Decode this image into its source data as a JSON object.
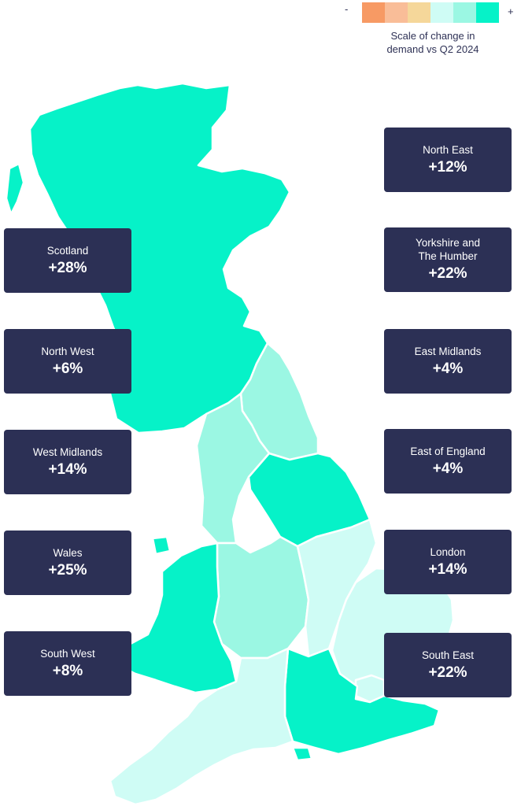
{
  "legend": {
    "minus": "-",
    "plus": "+",
    "caption": "Scale of change in\ndemand vs Q2 2024",
    "scale_colors": [
      "#f79a64",
      "#f9bd98",
      "#f5d79a",
      "#cffcf5",
      "#9bf7e3",
      "#06f2c8"
    ]
  },
  "colors": {
    "card": "#2c3055",
    "high": "#06f2c8",
    "mid": "#9bf7e3",
    "low": "#cffcf5"
  },
  "regions": {
    "north_east": {
      "name": "North East",
      "value": "+12%"
    },
    "yorkshire": {
      "name": "Yorkshire and\nThe Humber",
      "value": "+22%"
    },
    "east_midlands": {
      "name": "East Midlands",
      "value": "+4%"
    },
    "east_of_england": {
      "name": "East of England",
      "value": "+4%"
    },
    "london": {
      "name": "London",
      "value": "+14%"
    },
    "south_east": {
      "name": "South East",
      "value": "+22%"
    },
    "scotland": {
      "name": "Scotland",
      "value": "+28%"
    },
    "north_west": {
      "name": "North West",
      "value": "+6%"
    },
    "west_midlands": {
      "name": "West Midlands",
      "value": "+14%"
    },
    "wales": {
      "name": "Wales",
      "value": "+25%"
    },
    "south_west": {
      "name": "South West",
      "value": "+8%"
    }
  }
}
